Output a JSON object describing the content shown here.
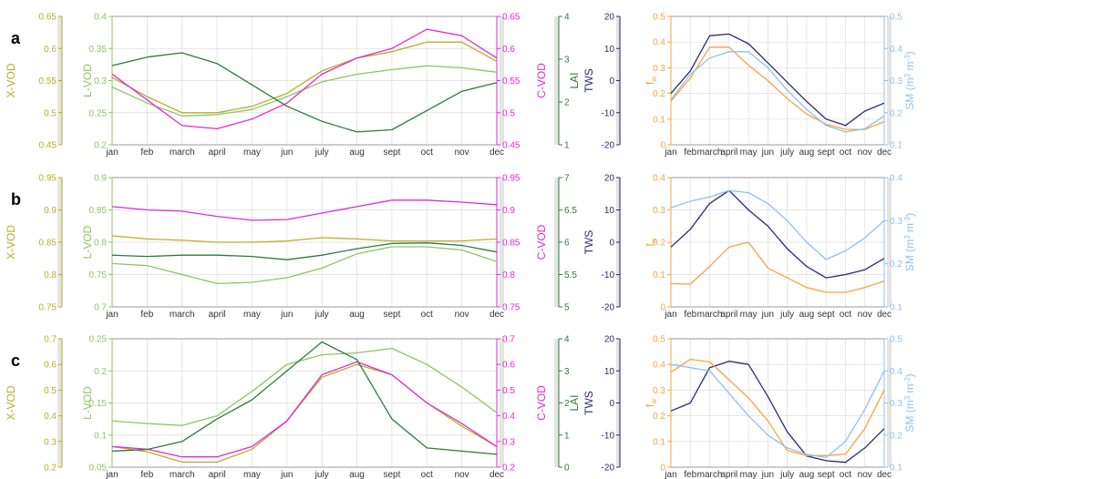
{
  "colors": {
    "xvod": "#b8ac2a",
    "lvod": "#8cc466",
    "cvod": "#e628cf",
    "lai": "#2f7a3a",
    "tws": "#2b2a6e",
    "fw": "#f5a341",
    "sm": "#8ec0ee"
  },
  "chart_data": [
    {
      "type": "line",
      "panel": "a",
      "categories": [
        "jan",
        "feb",
        "march",
        "april",
        "may",
        "jun",
        "july",
        "aug",
        "sept",
        "oct",
        "nov",
        "dec"
      ],
      "axes": {
        "xvod": {
          "label": "X-VOD",
          "ylim": [
            0.45,
            0.65
          ],
          "ticks": [
            "0.45",
            "0.5",
            "0.55",
            "0.6",
            "0.65"
          ]
        },
        "lvod": {
          "label": "L-VOD",
          "ylim": [
            0.2,
            0.4
          ],
          "ticks": [
            "0.2",
            "0.25",
            "0.3",
            "0.35",
            "0.4"
          ]
        },
        "cvod": {
          "label": "C-VOD",
          "ylim": [
            0.45,
            0.65
          ],
          "ticks": [
            "0.45",
            "0.5",
            "0.55",
            "0.6",
            "0.65"
          ]
        },
        "lai": {
          "label": "LAI",
          "ylim": [
            1,
            4
          ],
          "ticks": [
            "1",
            "2",
            "3",
            "4"
          ]
        }
      },
      "series": [
        {
          "axis": "xvod",
          "color": "xvod",
          "values": [
            0.555,
            0.525,
            0.5,
            0.5,
            0.51,
            0.53,
            0.565,
            0.585,
            0.595,
            0.61,
            0.61,
            0.58
          ]
        },
        {
          "axis": "lvod",
          "color": "lvod",
          "values": [
            0.29,
            0.265,
            0.245,
            0.247,
            0.255,
            0.275,
            0.298,
            0.31,
            0.317,
            0.323,
            0.32,
            0.313
          ]
        },
        {
          "axis": "cvod",
          "color": "cvod",
          "values": [
            0.56,
            0.52,
            0.48,
            0.475,
            0.49,
            0.515,
            0.56,
            0.585,
            0.6,
            0.63,
            0.62,
            0.585
          ]
        },
        {
          "axis": "lai",
          "color": "lai",
          "values": [
            2.85,
            3.05,
            3.15,
            2.9,
            2.4,
            1.9,
            1.55,
            1.3,
            1.35,
            1.8,
            2.25,
            2.45
          ]
        }
      ]
    },
    {
      "type": "line",
      "panel": "a",
      "categories": [
        "jan",
        "feb",
        "march",
        "april",
        "may",
        "jun",
        "july",
        "aug",
        "sept",
        "oct",
        "nov",
        "dec"
      ],
      "axes": {
        "tws": {
          "label": "TWS",
          "ylim": [
            -20,
            20
          ],
          "ticks": [
            "-20",
            "-10",
            "0",
            "10",
            "20"
          ]
        },
        "fw": {
          "label": "f",
          "label_sub": "w",
          "ylim": [
            0,
            0.5
          ],
          "ticks": [
            "0",
            "0.1",
            "0.2",
            "0.3",
            "0.4",
            "0.5"
          ]
        },
        "sm": {
          "label": "SM (m",
          "label_tail": " m",
          "ylim": [
            0.1,
            0.5
          ],
          "ticks": [
            "0.1",
            "0.2",
            "0.3",
            "0.4",
            "0.5"
          ]
        }
      },
      "series": [
        {
          "axis": "tws",
          "color": "tws",
          "values": [
            -4,
            3,
            14,
            14.5,
            11.5,
            5.5,
            -0.5,
            -6.5,
            -12,
            -14,
            -9.5,
            -7
          ]
        },
        {
          "axis": "fw",
          "color": "fw",
          "values": [
            0.17,
            0.26,
            0.38,
            0.38,
            0.31,
            0.25,
            0.18,
            0.12,
            0.08,
            0.06,
            0.06,
            0.09
          ]
        },
        {
          "axis": "sm",
          "color": "sm",
          "values": [
            0.24,
            0.32,
            0.37,
            0.39,
            0.39,
            0.34,
            0.27,
            0.21,
            0.16,
            0.14,
            0.15,
            0.19
          ]
        }
      ]
    },
    {
      "type": "line",
      "panel": "b",
      "categories": [
        "jan",
        "feb",
        "march",
        "april",
        "may",
        "jun",
        "july",
        "aug",
        "sept",
        "oct",
        "nov",
        "dec"
      ],
      "axes": {
        "xvod": {
          "label": "X-VOD",
          "ylim": [
            0.75,
            0.95
          ],
          "ticks": [
            "0.75",
            "0.8",
            "0.85",
            "0.9",
            "0.95"
          ]
        },
        "lvod": {
          "label": "L-VOD",
          "ylim": [
            0.7,
            0.9
          ],
          "ticks": [
            "0.7",
            "0.75",
            "0.8",
            "0.85",
            "0.9"
          ]
        },
        "cvod": {
          "label": "C-VOD",
          "ylim": [
            0.75,
            0.95
          ],
          "ticks": [
            "0.75",
            "0.8",
            "0.85",
            "0.9",
            "0.95"
          ]
        },
        "lai": {
          "label": "",
          "ylim": [
            5,
            7
          ],
          "ticks": [
            "5",
            "5.5",
            "6",
            "6.5",
            "7"
          ]
        }
      },
      "series": [
        {
          "axis": "xvod",
          "color": "xvod",
          "values": [
            0.86,
            0.855,
            0.853,
            0.85,
            0.85,
            0.852,
            0.857,
            0.855,
            0.852,
            0.852,
            0.852,
            0.855
          ]
        },
        {
          "axis": "lvod",
          "color": "lvod",
          "values": [
            0.767,
            0.764,
            0.75,
            0.736,
            0.738,
            0.745,
            0.76,
            0.782,
            0.793,
            0.793,
            0.788,
            0.77
          ]
        },
        {
          "axis": "cvod",
          "color": "cvod",
          "values": [
            0.905,
            0.9,
            0.898,
            0.89,
            0.884,
            0.885,
            0.895,
            0.905,
            0.915,
            0.915,
            0.912,
            0.908
          ]
        },
        {
          "axis": "lai",
          "color": "lai",
          "values": [
            5.8,
            5.78,
            5.8,
            5.8,
            5.78,
            5.73,
            5.8,
            5.9,
            5.98,
            5.99,
            5.95,
            5.85
          ]
        }
      ]
    },
    {
      "type": "line",
      "panel": "b",
      "categories": [
        "jan",
        "feb",
        "march",
        "april",
        "may",
        "jun",
        "july",
        "aug",
        "sept",
        "oct",
        "nov",
        "dec"
      ],
      "axes": {
        "tws": {
          "label": "TWS",
          "ylim": [
            -20,
            20
          ],
          "ticks": [
            "-20",
            "-10",
            "0",
            "10",
            "20"
          ]
        },
        "fw": {
          "label": "f",
          "label_sub": "w",
          "ylim": [
            0,
            0.4
          ],
          "ticks": [
            "0",
            "0.1",
            "0.2",
            "0.3",
            "0.4"
          ]
        },
        "sm": {
          "label": "SM (m",
          "label_tail": " m",
          "ylim": [
            0.1,
            0.4
          ],
          "ticks": [
            "0.1",
            "0.2",
            "0.3",
            "0.4"
          ]
        }
      },
      "series": [
        {
          "axis": "tws",
          "color": "tws",
          "values": [
            -1.5,
            4,
            12,
            16,
            10,
            5,
            -2,
            -7.5,
            -11,
            -10,
            -8.5,
            -5
          ]
        },
        {
          "axis": "fw",
          "color": "fw",
          "values": [
            0.072,
            0.07,
            0.125,
            0.185,
            0.2,
            0.12,
            0.09,
            0.06,
            0.045,
            0.045,
            0.06,
            0.08
          ]
        },
        {
          "axis": "sm",
          "color": "sm",
          "values": [
            0.33,
            0.345,
            0.355,
            0.37,
            0.365,
            0.34,
            0.3,
            0.25,
            0.21,
            0.23,
            0.26,
            0.3
          ]
        }
      ]
    },
    {
      "type": "line",
      "panel": "c",
      "categories": [
        "jan",
        "feb",
        "march",
        "april",
        "may",
        "jun",
        "july",
        "aug",
        "sept",
        "oct",
        "nov",
        "dec"
      ],
      "axes": {
        "xvod": {
          "label": "X-VOD",
          "ylim": [
            0.2,
            0.7
          ],
          "ticks": [
            "0.2",
            "0.3",
            "0.4",
            "0.5",
            "0.6",
            "0.7"
          ]
        },
        "lvod": {
          "label": "L-VOD",
          "ylim": [
            0.05,
            0.25
          ],
          "ticks": [
            "0.05",
            "0.1",
            "0.15",
            "0.2",
            "0.25"
          ]
        },
        "cvod": {
          "label": "C-VOD",
          "ylim": [
            0.2,
            0.7
          ],
          "ticks": [
            "0.2",
            "0.3",
            "0.4",
            "0.5",
            "0.6",
            "0.7"
          ]
        },
        "lai": {
          "label": "LAI",
          "ylim": [
            0,
            4
          ],
          "ticks": [
            "0",
            "1",
            "2",
            "3",
            "4"
          ]
        }
      },
      "series": [
        {
          "axis": "xvod",
          "color": "xvod",
          "values": [
            0.28,
            0.26,
            0.22,
            0.22,
            0.27,
            0.38,
            0.55,
            0.6,
            0.56,
            0.45,
            0.36,
            0.28
          ]
        },
        {
          "axis": "lvod",
          "color": "lvod",
          "values": [
            0.122,
            0.118,
            0.115,
            0.13,
            0.168,
            0.21,
            0.225,
            0.228,
            0.235,
            0.21,
            0.175,
            0.135
          ]
        },
        {
          "axis": "cvod",
          "color": "cvod",
          "values": [
            0.28,
            0.27,
            0.24,
            0.24,
            0.28,
            0.38,
            0.56,
            0.61,
            0.56,
            0.45,
            0.37,
            0.28
          ]
        },
        {
          "axis": "lai",
          "color": "lai",
          "values": [
            0.5,
            0.55,
            0.8,
            1.5,
            2.1,
            3.0,
            3.9,
            3.35,
            1.5,
            0.6,
            0.5,
            0.4
          ]
        }
      ]
    },
    {
      "type": "line",
      "panel": "c",
      "categories": [
        "jan",
        "feb",
        "march",
        "april",
        "may",
        "jun",
        "july",
        "aug",
        "sept",
        "oct",
        "nov",
        "dec"
      ],
      "axes": {
        "tws": {
          "label": "TWS",
          "ylim": [
            -20,
            20
          ],
          "ticks": [
            "-20",
            "-10",
            "0",
            "10",
            "20"
          ]
        },
        "fw": {
          "label": "f",
          "label_sub": "w",
          "ylim": [
            0,
            0.5
          ],
          "ticks": [
            "0",
            "0.1",
            "0.2",
            "0.3",
            "0.4",
            "0.5"
          ]
        },
        "sm": {
          "label": "SM (m",
          "label_tail": " m",
          "ylim": [
            0.1,
            0.5
          ],
          "ticks": [
            "0.1",
            "0.2",
            "0.3",
            "0.4",
            "0.5"
          ]
        }
      },
      "series": [
        {
          "axis": "tws",
          "color": "tws",
          "values": [
            -2.5,
            0,
            11,
            13,
            12,
            2,
            -9,
            -16.5,
            -18,
            -18.5,
            -14,
            -8
          ]
        },
        {
          "axis": "fw",
          "color": "fw",
          "values": [
            0.37,
            0.42,
            0.41,
            0.34,
            0.27,
            0.18,
            0.065,
            0.045,
            0.045,
            0.05,
            0.15,
            0.3
          ]
        },
        {
          "axis": "sm",
          "color": "sm",
          "values": [
            0.42,
            0.41,
            0.4,
            0.33,
            0.26,
            0.2,
            0.16,
            0.14,
            0.13,
            0.18,
            0.28,
            0.4
          ]
        }
      ]
    }
  ]
}
